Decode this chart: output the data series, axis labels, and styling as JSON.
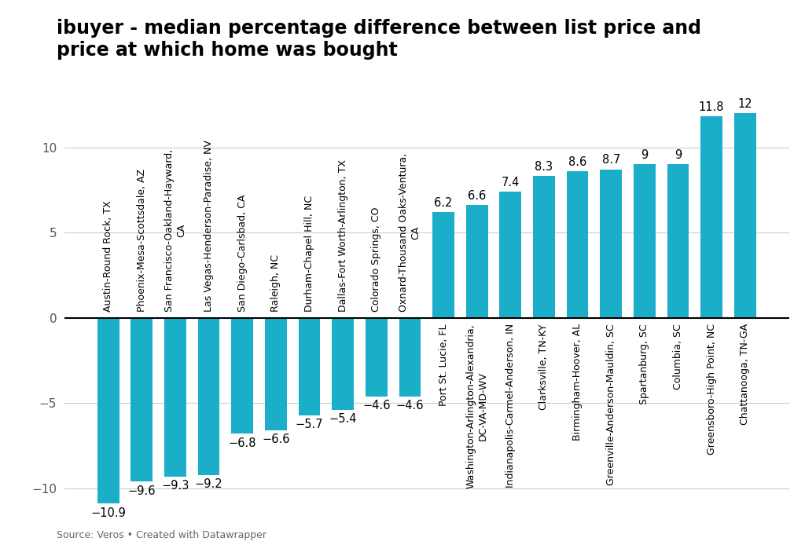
{
  "categories": [
    "Austin-Round Rock, TX",
    "Phoenix-Mesa-Scottsdale, AZ",
    "San Francisco-Oakland-Hayward,\nCA",
    "Las Vegas-Henderson-Paradise, NV",
    "San Diego-Carlsbad, CA",
    "Raleigh, NC",
    "Durham-Chapel Hill, NC",
    "Dallas-Fort Worth-Arlington, TX",
    "Colorado Springs, CO",
    "Oxnard-Thousand Oaks-Ventura,\nCA",
    "Port St. Lucie, FL",
    "Washington-Arlington-Alexandria,\nDC-VA-MD-WV",
    "Indianapolis-Carmel-Anderson, IN",
    "Clarksville, TN-KY",
    "Birmingham-Hoover, AL",
    "Greenville-Anderson-Mauldin, SC",
    "Spartanburg, SC",
    "Columbia, SC",
    "Greensboro-High Point, NC",
    "Chattanooga, TN-GA"
  ],
  "values": [
    -10.9,
    -9.6,
    -9.3,
    -9.2,
    -6.8,
    -6.6,
    -5.7,
    -5.4,
    -4.6,
    -4.6,
    6.2,
    6.6,
    7.4,
    8.3,
    8.6,
    8.7,
    9.0,
    9.0,
    11.8,
    12.0
  ],
  "bar_color": "#1baec8",
  "background_color": "#ffffff",
  "title_line1": "ibuyer - median percentage difference between list price and",
  "title_line2": "price at which home was bought",
  "title_fontsize": 17,
  "source_text": "Source: Veros • Created with Datawrapper",
  "ylim": [
    -13,
    14
  ],
  "yticks": [
    -10,
    -5,
    0,
    5,
    10
  ],
  "label_fontsize": 9,
  "value_fontsize": 10.5
}
